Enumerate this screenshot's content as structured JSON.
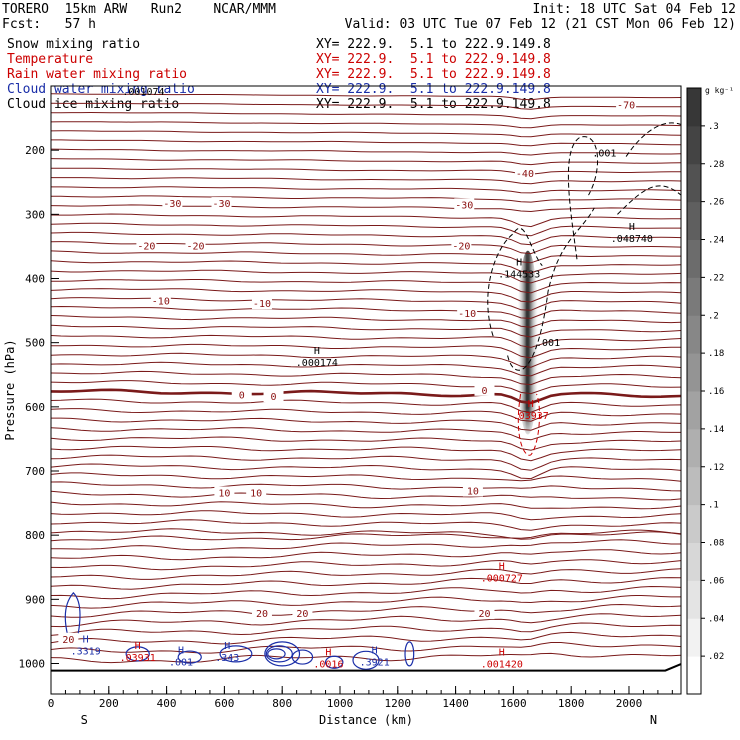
{
  "header": {
    "model": "TORERO  15km ARW   Run2    NCAR/MMM",
    "init": "Init: 18 UTC Sat 04 Feb 12",
    "fcst": "Fcst:   57 h",
    "valid": "Valid: 03 UTC Tue 07 Feb 12 (21 CST Mon 06 Feb 12)"
  },
  "fields": [
    {
      "name": "Snow mixing ratio",
      "xy": "XY= 222.9.  5.1 to 222.9.149.8",
      "color": "#000000",
      "xy_color": "#000000"
    },
    {
      "name": "Temperature",
      "xy": "XY= 222.9.  5.1 to 222.9.149.8",
      "color": "#cc0000",
      "xy_color": "#cc0000"
    },
    {
      "name": "Rain water mixing ratio",
      "xy": "XY= 222.9.  5.1 to 222.9.149.8",
      "color": "#cc0000",
      "xy_color": "#cc0000"
    },
    {
      "name": "Cloud water mixing ratio",
      "xy": "XY= 222.9.  5.1 to 222.9.149.8",
      "color": "#1a2ea8",
      "xy_color": "#1a2ea8"
    },
    {
      "name": "Cloud ice mixing ratio",
      "xy": "XY= 222.9.  5.1 to 222.9.149.8",
      "color": "#000000",
      "xy_color": "#000000"
    }
  ],
  "chart_data": {
    "type": "contour",
    "xlabel": "Distance (km)",
    "ylabel": "Pressure (hPa)",
    "xlim": [
      0,
      2180
    ],
    "ylim": [
      1050,
      100
    ],
    "x_ticks": [
      0,
      200,
      400,
      600,
      800,
      1000,
      1200,
      1400,
      1600,
      1800,
      2000
    ],
    "y_ticks": [
      200,
      300,
      400,
      500,
      600,
      700,
      800,
      900,
      1000
    ],
    "x_ends": {
      "left": "S",
      "right": "N"
    },
    "colorbar": {
      "unit": "g kg⁻¹",
      "ticks": [
        ".3",
        ".28",
        ".26",
        ".24",
        ".22",
        ".2",
        ".18",
        ".16",
        ".14",
        ".12",
        ".1",
        ".08",
        ".06",
        ".04",
        ".02"
      ],
      "values": [
        0.3,
        0.28,
        0.26,
        0.24,
        0.22,
        0.2,
        0.18,
        0.16,
        0.14,
        0.12,
        0.1,
        0.08,
        0.06,
        0.04,
        0.02
      ]
    },
    "temperature_contours": [
      {
        "label": "-70",
        "pressure": 125
      },
      {
        "label": "-40",
        "pressure": 235
      },
      {
        "label": "-30",
        "pressure": 283
      },
      {
        "label": "-20",
        "pressure": 348
      },
      {
        "label": "-10",
        "pressure": 438
      },
      {
        "label": "0",
        "pressure": 570
      },
      {
        "label": "10",
        "pressure": 720
      },
      {
        "label": "20",
        "pressure": 910
      }
    ],
    "temperature_labels": [
      {
        "text": "-70",
        "x": 1990,
        "p": 130
      },
      {
        "text": "-40",
        "x": 1640,
        "p": 237
      },
      {
        "text": "-30",
        "x": 420,
        "p": 284
      },
      {
        "text": "-30",
        "x": 590,
        "p": 284
      },
      {
        "text": "-30",
        "x": 1430,
        "p": 286
      },
      {
        "text": "-20",
        "x": 330,
        "p": 350
      },
      {
        "text": "-20",
        "x": 500,
        "p": 350
      },
      {
        "text": "-20",
        "x": 1420,
        "p": 350
      },
      {
        "text": "-10",
        "x": 380,
        "p": 436
      },
      {
        "text": "-10",
        "x": 730,
        "p": 440
      },
      {
        "text": "-10",
        "x": 1440,
        "p": 455
      },
      {
        "text": "0",
        "x": 660,
        "p": 582
      },
      {
        "text": "0",
        "x": 770,
        "p": 585
      },
      {
        "text": "0",
        "x": 1500,
        "p": 575
      },
      {
        "text": "10",
        "x": 600,
        "p": 735
      },
      {
        "text": "10",
        "x": 710,
        "p": 735
      },
      {
        "text": "10",
        "x": 1460,
        "p": 732
      },
      {
        "text": "20",
        "x": 730,
        "p": 923
      },
      {
        "text": "20",
        "x": 870,
        "p": 923
      },
      {
        "text": "20",
        "x": 1500,
        "p": 923
      },
      {
        "text": "20",
        "x": 60,
        "p": 963
      }
    ],
    "highs": [
      {
        "text": ".000174",
        "x": 920,
        "p": 530,
        "color": "#000000"
      },
      {
        "text": ".144533",
        "x": 1620,
        "p": 392,
        "color": "#000000"
      },
      {
        "text": ".048740",
        "x": 2010,
        "p": 337,
        "color": "#000000"
      },
      {
        "text": ".03937",
        "x": 1660,
        "p": 613,
        "color": "#cc0000"
      },
      {
        "text": ".000727",
        "x": 1560,
        "p": 866,
        "color": "#cc0000"
      },
      {
        "text": ".001420",
        "x": 1560,
        "p": 1000,
        "color": "#cc0000"
      },
      {
        "text": ".3319",
        "x": 120,
        "p": 980,
        "color": "#1a2ea8"
      },
      {
        "text": ".001",
        "x": 450,
        "p": 997,
        "color": "#1a2ea8"
      },
      {
        "text": ".343",
        "x": 610,
        "p": 990,
        "color": "#1a2ea8"
      },
      {
        "text": ".3921",
        "x": 1120,
        "p": 997,
        "color": "#1a2ea8"
      },
      {
        "text": ".03931",
        "x": 300,
        "p": 990,
        "color": "#cc0000"
      },
      {
        "text": ".0016",
        "x": 960,
        "p": 1000,
        "color": "#cc0000"
      }
    ],
    "other_labels": [
      {
        "text": ".001",
        "x": 1915,
        "p": 210,
        "color": "#000000"
      },
      {
        "text": ".001",
        "x": 1720,
        "p": 505,
        "color": "#000000"
      },
      {
        "text": ".001074",
        "x": 320,
        "p": 114,
        "color": "#000000"
      }
    ]
  }
}
